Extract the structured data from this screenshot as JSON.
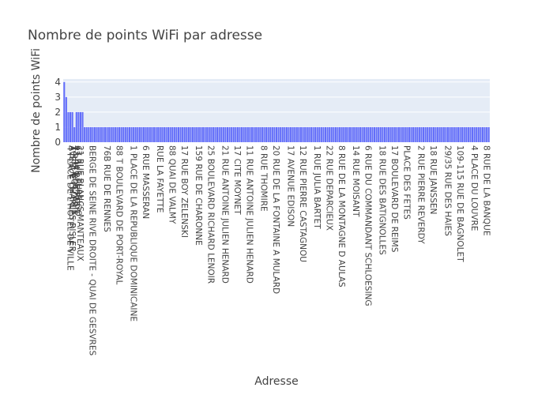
{
  "chart_data": {
    "type": "bar",
    "title": "Nombre de points WiFi par adresse",
    "xlabel": "Adresse",
    "ylabel": "Nombre de points WiFi",
    "ylim": [
      0,
      4.2
    ],
    "yticks": [
      0,
      1,
      2,
      3,
      4
    ],
    "bar_color": "#636efa",
    "plot_bg": "#e5ecf6",
    "grid": true,
    "legend": "none",
    "categories": [
      "4 PLACE DE L'HOTEL DE VILLE",
      "AVENUE CHARLES RISLER",
      "1 RUE BOTZARIS",
      "42-44 RUE PETIT",
      "67 RUE TURBIGO",
      "21 RUE BLANCS MANTEAUX",
      "BERGE DE SEINE RIVE DROITE - QUAI DE GESVRES",
      "76B RUE DE RENNES",
      "88 T BOULEVARD DE PORT-ROYAL",
      "1 PLACE DE LA REPUBLIQUE DOMINICAINE",
      "6 RUE MASSERAN",
      "RUE LA FAYETTE",
      "88 QUAI DE VALMY",
      "17 RUE BOY ZELENSKI",
      "159 RUE DE CHARONNE",
      "25 BOULEVARD RICHARD LENOIR",
      "21 RUE ANTOINE JULIEN HENARD",
      "17 CITE MOYNET",
      "11 RUE ANTOINE JULIEN HENARD",
      "8 RUE THOMIRE",
      "20 RUE DE LA FONTAINE A MULARD",
      "17 AVENUE EDISON",
      "12 RUE PIERRE CASTAGNOU",
      "1 RUE JULIA BARTET",
      "22 RUE DEPARCIEUX",
      "8 RUE DE LA MONTAGNE D AULAS",
      "14 RUE MOISANT",
      "6 RUE DU COMMANDANT SCHLOESING",
      "18 RUE DES BATIGNOLLES",
      "17 BOULEVARD DE REIMS",
      "PLACE DES FETES",
      "2 RUE PIERRE REVERDY",
      "18 RUE JANSSEN",
      "29/35 RUE DES HAIES",
      "109-115 RUE DE BAGNOLET",
      "4 PLACE DU LOUVRE",
      "8 RUE DE LA BANQUE"
    ],
    "values": [
      4,
      3,
      2,
      2,
      2,
      1,
      1,
      1,
      1,
      1,
      1,
      1,
      1,
      1,
      1,
      1,
      1,
      1,
      1,
      1,
      1,
      1,
      1,
      1,
      1,
      1,
      1,
      1,
      1,
      1,
      1,
      1,
      1,
      1,
      1,
      1,
      1
    ]
  }
}
